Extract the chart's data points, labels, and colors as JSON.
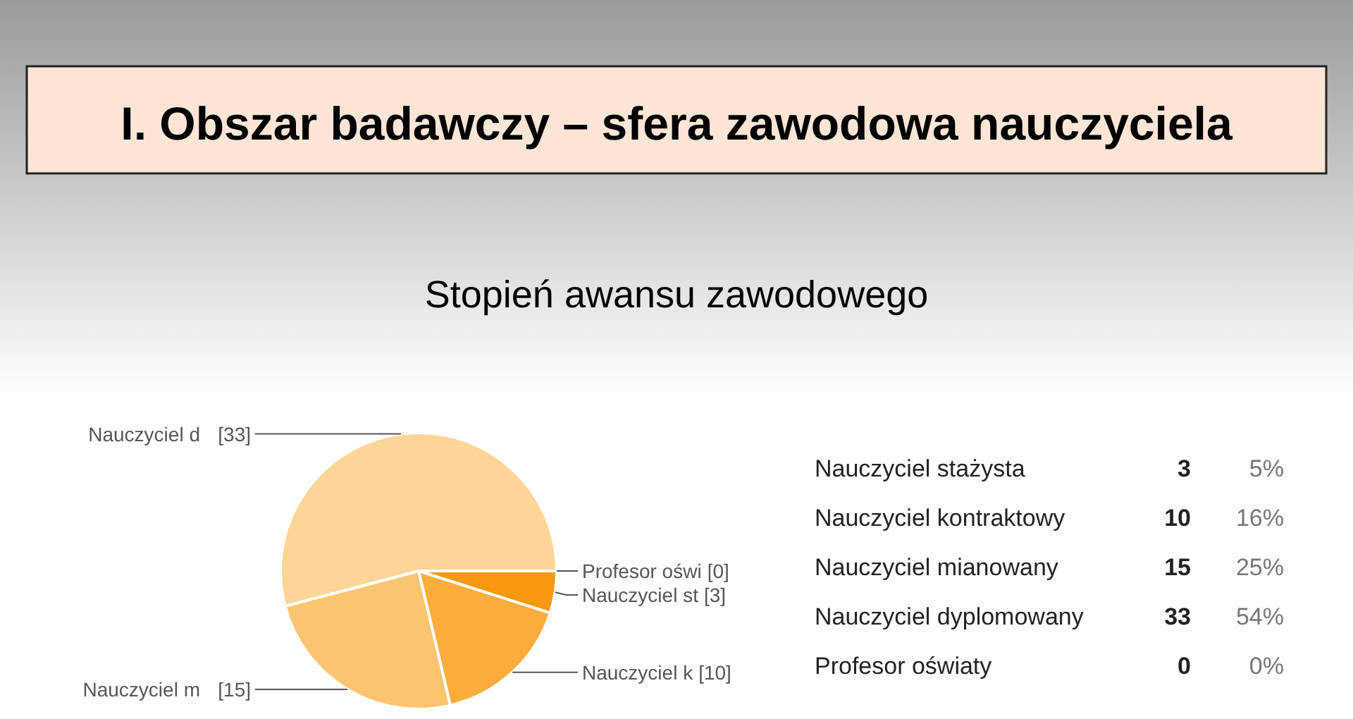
{
  "chart_data": [
    {
      "type": "pie",
      "title": "I. Obszar badawczy – sfera zawodowa nauczyciela",
      "subtitle": "Stopień awansu zawodowego",
      "categories": [
        "Nauczyciel st",
        "Nauczyciel k",
        "Nauczyciel m",
        "Nauczyciel d",
        "Profesor oświ"
      ],
      "values": [
        3,
        10,
        15,
        33,
        0
      ],
      "colors": [
        "#f7980f",
        "#fbad3c",
        "#fdc46f",
        "#fdd596",
        "#fee4bb"
      ],
      "value_labels": [
        "[3]",
        "[10]",
        "[15]",
        "[33]",
        "[0]"
      ]
    },
    {
      "type": "other",
      "annotations": [
        "Nauczyciel stażysta",
        "3",
        "5%",
        "Nauczyciel kontraktowy",
        "10",
        "16%",
        "Nauczyciel mianowany",
        "15",
        "25%",
        "Nauczyciel dyplomowany",
        "33",
        "54%",
        "Profesor oświaty",
        "0",
        "0%"
      ]
    }
  ]
}
